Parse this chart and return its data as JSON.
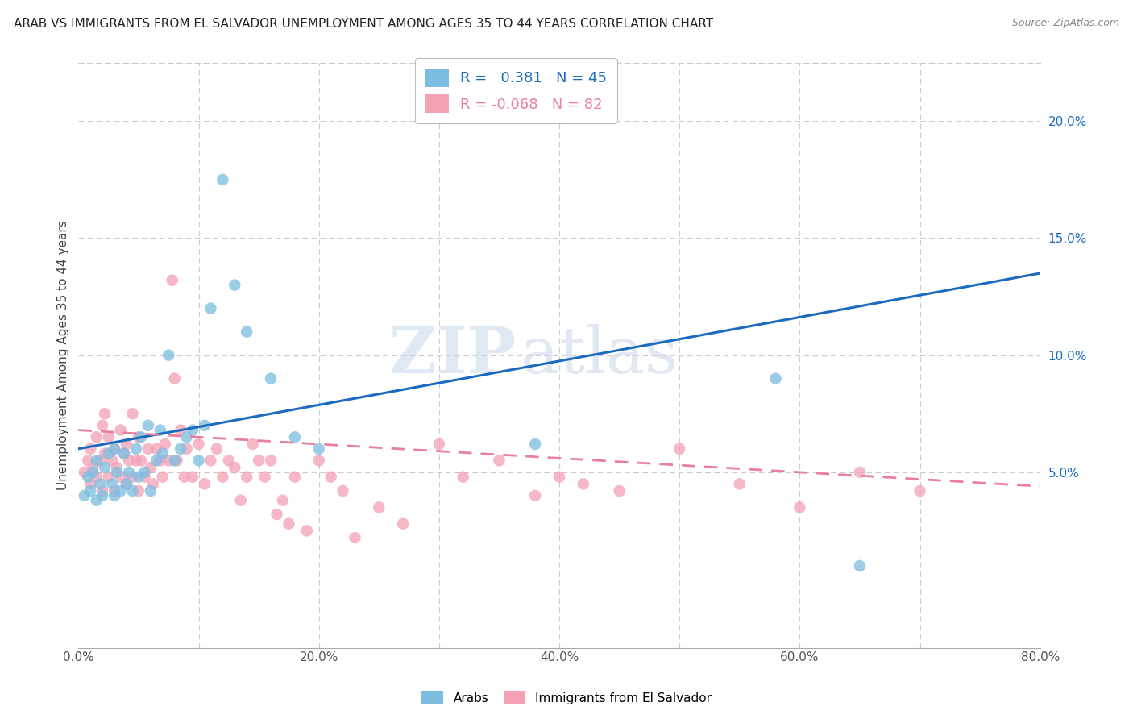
{
  "title": "ARAB VS IMMIGRANTS FROM EL SALVADOR UNEMPLOYMENT AMONG AGES 35 TO 44 YEARS CORRELATION CHART",
  "source": "Source: ZipAtlas.com",
  "ylabel": "Unemployment Among Ages 35 to 44 years",
  "xlim": [
    0.0,
    0.8
  ],
  "ylim": [
    -0.025,
    0.225
  ],
  "arab_color": "#7bbde0",
  "salvador_color": "#f4a0b5",
  "arab_line_color": "#1a6abf",
  "salvador_line_color": "#e87fa0",
  "R_arab": 0.381,
  "N_arab": 45,
  "R_salvador": -0.068,
  "N_salvador": 82,
  "legend_labels": [
    "Arabs",
    "Immigrants from El Salvador"
  ],
  "watermark_zip": "ZIP",
  "watermark_atlas": "atlas",
  "background_color": "#ffffff",
  "grid_color": "#cccccc",
  "right_tick_color": "#1a6abf",
  "arab_line_y0": 0.06,
  "arab_line_y1": 0.135,
  "sal_line_y0": 0.068,
  "sal_line_y1": 0.044,
  "arab_x": [
    0.005,
    0.008,
    0.01,
    0.012,
    0.015,
    0.015,
    0.018,
    0.02,
    0.022,
    0.025,
    0.028,
    0.03,
    0.03,
    0.032,
    0.035,
    0.038,
    0.04,
    0.042,
    0.045,
    0.048,
    0.05,
    0.052,
    0.055,
    0.058,
    0.06,
    0.065,
    0.068,
    0.07,
    0.075,
    0.08,
    0.085,
    0.09,
    0.095,
    0.1,
    0.105,
    0.11,
    0.12,
    0.13,
    0.14,
    0.16,
    0.18,
    0.2,
    0.38,
    0.58,
    0.65
  ],
  "arab_y": [
    0.04,
    0.048,
    0.042,
    0.05,
    0.038,
    0.055,
    0.045,
    0.04,
    0.052,
    0.058,
    0.045,
    0.04,
    0.06,
    0.05,
    0.042,
    0.058,
    0.045,
    0.05,
    0.042,
    0.06,
    0.048,
    0.065,
    0.05,
    0.07,
    0.042,
    0.055,
    0.068,
    0.058,
    0.1,
    0.055,
    0.06,
    0.065,
    0.068,
    0.055,
    0.07,
    0.12,
    0.175,
    0.13,
    0.11,
    0.09,
    0.065,
    0.06,
    0.062,
    0.09,
    0.01
  ],
  "sal_x": [
    0.005,
    0.008,
    0.01,
    0.01,
    0.012,
    0.015,
    0.015,
    0.018,
    0.02,
    0.02,
    0.022,
    0.022,
    0.025,
    0.025,
    0.028,
    0.03,
    0.03,
    0.032,
    0.035,
    0.035,
    0.038,
    0.04,
    0.04,
    0.042,
    0.045,
    0.045,
    0.048,
    0.05,
    0.05,
    0.052,
    0.055,
    0.058,
    0.06,
    0.062,
    0.065,
    0.068,
    0.07,
    0.072,
    0.075,
    0.078,
    0.08,
    0.082,
    0.085,
    0.088,
    0.09,
    0.095,
    0.1,
    0.105,
    0.11,
    0.115,
    0.12,
    0.125,
    0.13,
    0.135,
    0.14,
    0.145,
    0.15,
    0.155,
    0.16,
    0.165,
    0.17,
    0.175,
    0.18,
    0.19,
    0.2,
    0.21,
    0.22,
    0.23,
    0.25,
    0.27,
    0.3,
    0.32,
    0.35,
    0.38,
    0.4,
    0.42,
    0.45,
    0.5,
    0.55,
    0.6,
    0.65,
    0.7
  ],
  "sal_y": [
    0.05,
    0.055,
    0.045,
    0.06,
    0.052,
    0.048,
    0.065,
    0.055,
    0.042,
    0.07,
    0.058,
    0.075,
    0.048,
    0.065,
    0.055,
    0.042,
    0.06,
    0.052,
    0.048,
    0.068,
    0.058,
    0.045,
    0.062,
    0.055,
    0.048,
    0.075,
    0.055,
    0.042,
    0.065,
    0.055,
    0.048,
    0.06,
    0.052,
    0.045,
    0.06,
    0.055,
    0.048,
    0.062,
    0.055,
    0.132,
    0.09,
    0.055,
    0.068,
    0.048,
    0.06,
    0.048,
    0.062,
    0.045,
    0.055,
    0.06,
    0.048,
    0.055,
    0.052,
    0.038,
    0.048,
    0.062,
    0.055,
    0.048,
    0.055,
    0.032,
    0.038,
    0.028,
    0.048,
    0.025,
    0.055,
    0.048,
    0.042,
    0.022,
    0.035,
    0.028,
    0.062,
    0.048,
    0.055,
    0.04,
    0.048,
    0.045,
    0.042,
    0.06,
    0.045,
    0.035,
    0.05,
    0.042
  ]
}
